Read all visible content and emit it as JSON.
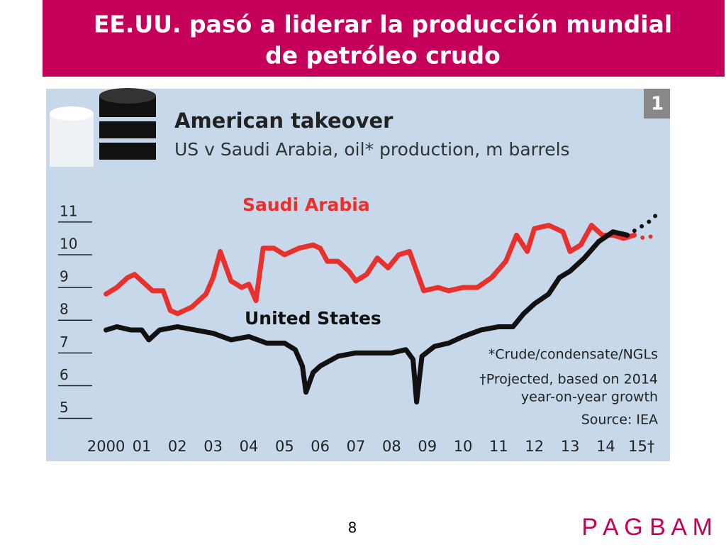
{
  "slide": {
    "title_lines": [
      "EE.UU. pasó a liderar la producción mundial",
      "de petróleo crudo"
    ],
    "page_number": "8",
    "brand": "P A G B A M"
  },
  "chart_data": {
    "type": "line",
    "title": "American takeover",
    "subtitle": "US v Saudi Arabia, oil* production, m barrels",
    "chart_number": "1",
    "notes": [
      "*Crude/condensate/NGLs",
      "†Projected, based on 2014",
      "year-on-year growth",
      "Source: IEA"
    ],
    "xlim": [
      1999.75,
      2015.6
    ],
    "xticks": [
      {
        "value": 2000,
        "label": "2000"
      },
      {
        "value": 2001,
        "label": "01"
      },
      {
        "value": 2002,
        "label": "02"
      },
      {
        "value": 2003,
        "label": "03"
      },
      {
        "value": 2004,
        "label": "04"
      },
      {
        "value": 2005,
        "label": "05"
      },
      {
        "value": 2006,
        "label": "06"
      },
      {
        "value": 2007,
        "label": "07"
      },
      {
        "value": 2008,
        "label": "08"
      },
      {
        "value": 2009,
        "label": "09"
      },
      {
        "value": 2010,
        "label": "10"
      },
      {
        "value": 2011,
        "label": "11"
      },
      {
        "value": 2012,
        "label": "12"
      },
      {
        "value": 2013,
        "label": "13"
      },
      {
        "value": 2014,
        "label": "14"
      },
      {
        "value": 2015,
        "label": "15†"
      }
    ],
    "ylim": [
      4.6,
      11.8
    ],
    "yticks": [
      5,
      6,
      7,
      8,
      9,
      10,
      11
    ],
    "series": [
      {
        "name": "Saudi Arabia",
        "color": "#e8302c",
        "x": [
          2000.0,
          2000.3,
          2000.6,
          2000.8,
          2001.0,
          2001.3,
          2001.6,
          2001.8,
          2002.0,
          2002.4,
          2002.8,
          2003.0,
          2003.2,
          2003.5,
          2003.8,
          2004.0,
          2004.2,
          2004.4,
          2004.7,
          2005.0,
          2005.4,
          2005.8,
          2006.0,
          2006.2,
          2006.5,
          2006.8,
          2007.0,
          2007.3,
          2007.6,
          2007.9,
          2008.2,
          2008.5,
          2008.7,
          2008.9,
          2009.3,
          2009.6,
          2010.0,
          2010.4,
          2010.8,
          2011.2,
          2011.5,
          2011.8,
          2012.0,
          2012.4,
          2012.8,
          2013.0,
          2013.3,
          2013.6,
          2013.9,
          2014.2,
          2014.5,
          2014.8
        ],
        "values": [
          8.8,
          9.0,
          9.3,
          9.4,
          9.2,
          8.9,
          8.9,
          8.3,
          8.2,
          8.4,
          8.8,
          9.3,
          10.1,
          9.2,
          9.0,
          9.1,
          8.6,
          10.2,
          10.2,
          10.0,
          10.2,
          10.3,
          10.2,
          9.8,
          9.8,
          9.5,
          9.2,
          9.4,
          9.9,
          9.6,
          10.0,
          10.1,
          9.5,
          8.9,
          9.0,
          8.9,
          9.0,
          9.0,
          9.3,
          9.8,
          10.6,
          10.1,
          10.8,
          10.9,
          10.7,
          10.1,
          10.3,
          10.9,
          10.6,
          10.6,
          10.5,
          10.6
        ],
        "projection": {
          "x": [
            2014.8,
            2015.1,
            2015.4
          ],
          "values": [
            10.6,
            10.5,
            10.6
          ]
        }
      },
      {
        "name": "United States",
        "color": "#111111",
        "x": [
          2000.0,
          2000.3,
          2000.7,
          2001.0,
          2001.2,
          2001.5,
          2002.0,
          2002.5,
          2003.0,
          2003.5,
          2004.0,
          2004.5,
          2005.0,
          2005.3,
          2005.5,
          2005.6,
          2005.8,
          2006.0,
          2006.5,
          2007.0,
          2007.5,
          2008.0,
          2008.4,
          2008.6,
          2008.7,
          2008.85,
          2009.2,
          2009.6,
          2010.0,
          2010.5,
          2011.0,
          2011.4,
          2011.7,
          2012.0,
          2012.4,
          2012.7,
          2013.0,
          2013.4,
          2013.8,
          2014.2,
          2014.6
        ],
        "values": [
          7.7,
          7.8,
          7.7,
          7.7,
          7.4,
          7.7,
          7.8,
          7.7,
          7.6,
          7.4,
          7.5,
          7.3,
          7.3,
          7.1,
          6.6,
          5.8,
          6.4,
          6.6,
          6.9,
          7.0,
          7.0,
          7.0,
          7.1,
          6.8,
          5.5,
          6.9,
          7.2,
          7.3,
          7.5,
          7.7,
          7.8,
          7.8,
          8.2,
          8.5,
          8.8,
          9.3,
          9.5,
          9.9,
          10.4,
          10.7,
          10.6
        ],
        "projection": {
          "x": [
            2014.6,
            2014.9,
            2015.2,
            2015.5
          ],
          "values": [
            10.6,
            10.8,
            11.0,
            11.3
          ]
        }
      }
    ]
  }
}
